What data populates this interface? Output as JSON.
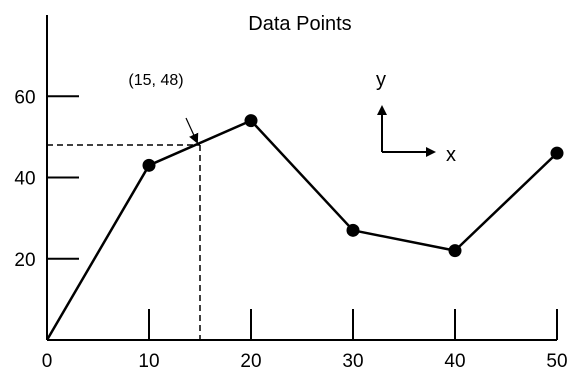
{
  "chart_data": {
    "type": "line",
    "title": "Data Points",
    "x": [
      0,
      10,
      20,
      30,
      40,
      50
    ],
    "y": [
      0,
      43,
      54,
      27,
      22,
      46
    ],
    "xlabel": "",
    "ylabel": "",
    "xlim": [
      0,
      50
    ],
    "ylim": [
      0,
      80
    ],
    "xticks": [
      0,
      10,
      20,
      30,
      40,
      50
    ],
    "xtick_labels": [
      "0",
      "10",
      "20",
      "30",
      "40",
      "50"
    ],
    "yticks": [
      20,
      40,
      60
    ],
    "ytick_labels": [
      "20",
      "40",
      "60"
    ],
    "markers": [
      false,
      true,
      true,
      true,
      true,
      true
    ],
    "grid": false,
    "annotation": {
      "text": "(15, 48)",
      "x": 15,
      "y": 48
    },
    "axis_indicator": {
      "x_label": "x",
      "y_label": "y"
    }
  }
}
